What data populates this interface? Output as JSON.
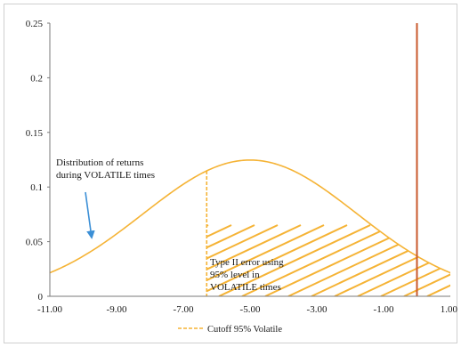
{
  "chart_data": {
    "type": "line",
    "xlim": [
      -11,
      1
    ],
    "ylim": [
      0,
      0.25
    ],
    "x_ticks": [
      "-11.00",
      "-9.00",
      "-7.00",
      "-5.00",
      "-3.00",
      "-1.00",
      "1.00"
    ],
    "x_tick_values": [
      -11,
      -9,
      -7,
      -5,
      -3,
      -1,
      1
    ],
    "y_ticks": [
      "0",
      "0.05",
      "0.1",
      "0.15",
      "0.2",
      "0.25"
    ],
    "y_tick_values": [
      0,
      0.05,
      0.1,
      0.15,
      0.2,
      0.25
    ],
    "grid": false,
    "series": [
      {
        "name": "",
        "color": "#f5b335",
        "distribution": {
          "mean": -5,
          "sd": 3.2
        },
        "x_range": [
          -11,
          1
        ]
      }
    ],
    "cutoff": {
      "x": -6.3,
      "color": "#f5b335",
      "style": "dashed"
    },
    "reference_line": {
      "x": 0,
      "color": "#c95a2c"
    },
    "shaded_region": {
      "from": -6.3,
      "to": 1,
      "pattern": "diagonal-hatch",
      "color": "#f5b335"
    },
    "annotations": [
      {
        "lines": [
          "Distribution of returns",
          "during VOLATILE times"
        ],
        "arrow_color": "#3b8fd6"
      },
      {
        "lines": [
          "Type II error using",
          "95% level in",
          "VOLATILE times"
        ]
      }
    ],
    "legend": {
      "position": "bottom-center",
      "entries": [
        {
          "label": "Cutoff 95% Volatile",
          "style": "dashed",
          "color": "#f5b335"
        }
      ]
    }
  }
}
